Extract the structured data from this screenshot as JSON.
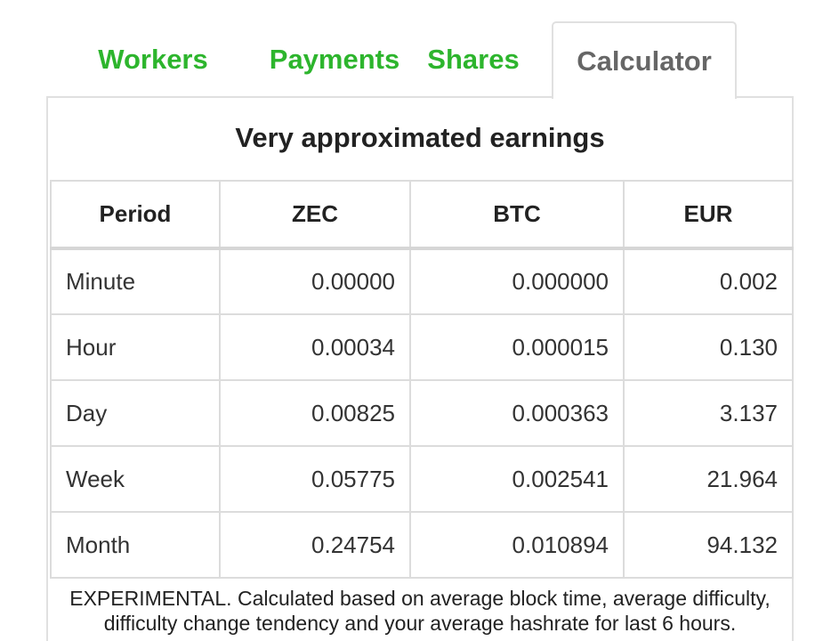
{
  "tabs": {
    "workers": "Workers",
    "payments": "Payments",
    "shares": "Shares",
    "calculator": "Calculator",
    "active": "calculator",
    "active_color": "#666666",
    "link_color": "#2db52d"
  },
  "panel": {
    "title": "Very approximated earnings"
  },
  "table": {
    "headers": [
      "Period",
      "ZEC",
      "BTC",
      "EUR"
    ],
    "rows": [
      [
        "Minute",
        "0.00000",
        "0.000000",
        "0.002"
      ],
      [
        "Hour",
        "0.00034",
        "0.000015",
        "0.130"
      ],
      [
        "Day",
        "0.00825",
        "0.000363",
        "3.137"
      ],
      [
        "Week",
        "0.05775",
        "0.002541",
        "21.964"
      ],
      [
        "Month",
        "0.24754",
        "0.010894",
        "94.132"
      ]
    ]
  },
  "note": {
    "line1": "EXPERIMENTAL. Calculated based on average block time, average difficulty,",
    "line2": "difficulty change tendency and your average hashrate for last 6 hours."
  }
}
